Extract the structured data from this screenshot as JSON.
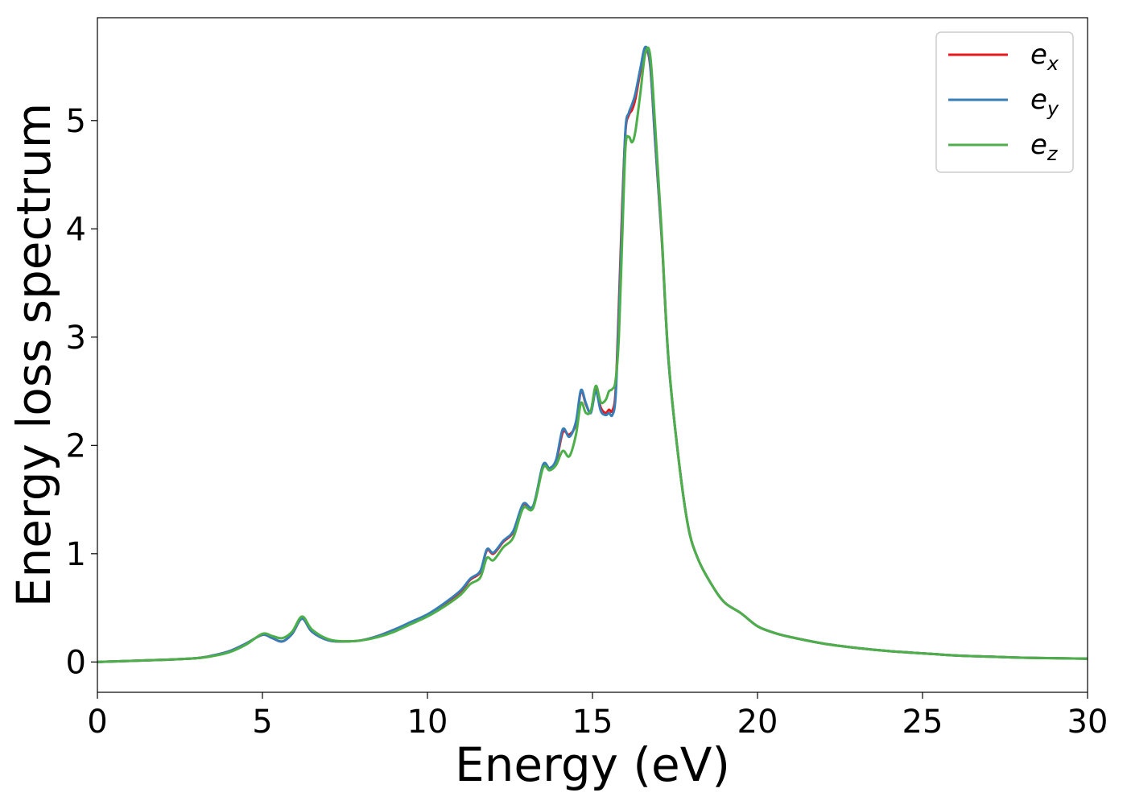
{
  "chart_data": {
    "type": "line",
    "title": "",
    "xlabel": "Energy (eV)",
    "ylabel": "Energy loss spectrum",
    "xlim": [
      0,
      30
    ],
    "ylim": [
      -0.28,
      5.95
    ],
    "xticks": [
      0,
      5,
      10,
      15,
      20,
      25,
      30
    ],
    "yticks": [
      0,
      1,
      2,
      3,
      4,
      5
    ],
    "grid": false,
    "legend_position": "top-right",
    "series": [
      {
        "name": "e",
        "subscript": "x",
        "color": "#e41a1c",
        "x": [
          0,
          1,
          2,
          3,
          3.5,
          4,
          4.5,
          5,
          5.3,
          5.6,
          5.9,
          6.2,
          6.5,
          7,
          7.5,
          8,
          8.5,
          9,
          9.5,
          10,
          10.5,
          11,
          11.3,
          11.6,
          11.8,
          12,
          12.3,
          12.6,
          12.9,
          13.2,
          13.5,
          13.7,
          13.9,
          14.1,
          14.3,
          14.5,
          14.65,
          14.8,
          14.95,
          15.1,
          15.25,
          15.4,
          15.5,
          15.6,
          15.7,
          15.8,
          15.9,
          16,
          16.1,
          16.2,
          16.3,
          16.45,
          16.6,
          16.75,
          16.9,
          17.1,
          17.3,
          17.6,
          17.9,
          18.2,
          18.6,
          19,
          19.5,
          20,
          20.5,
          21,
          22,
          23,
          24,
          25,
          26,
          27,
          28,
          29,
          30
        ],
        "values": [
          0,
          0.01,
          0.02,
          0.035,
          0.06,
          0.1,
          0.17,
          0.25,
          0.22,
          0.19,
          0.26,
          0.4,
          0.28,
          0.2,
          0.19,
          0.2,
          0.24,
          0.3,
          0.36,
          0.43,
          0.53,
          0.65,
          0.76,
          0.83,
          1.03,
          1.0,
          1.11,
          1.2,
          1.45,
          1.43,
          1.8,
          1.78,
          1.85,
          2.12,
          2.1,
          2.2,
          2.5,
          2.38,
          2.31,
          2.52,
          2.35,
          2.3,
          2.33,
          2.32,
          2.5,
          3.3,
          4.2,
          4.9,
          5.05,
          5.1,
          5.2,
          5.45,
          5.66,
          5.5,
          4.8,
          3.9,
          2.8,
          1.9,
          1.25,
          0.95,
          0.72,
          0.55,
          0.45,
          0.33,
          0.27,
          0.23,
          0.17,
          0.13,
          0.1,
          0.08,
          0.06,
          0.05,
          0.04,
          0.035,
          0.03
        ]
      },
      {
        "name": "e",
        "subscript": "y",
        "color": "#377eb8",
        "x": [
          0,
          1,
          2,
          3,
          3.5,
          4,
          4.5,
          5,
          5.3,
          5.6,
          5.9,
          6.2,
          6.5,
          7,
          7.5,
          8,
          8.5,
          9,
          9.5,
          10,
          10.5,
          11,
          11.3,
          11.6,
          11.8,
          12,
          12.3,
          12.6,
          12.9,
          13.2,
          13.5,
          13.7,
          13.9,
          14.1,
          14.3,
          14.5,
          14.65,
          14.8,
          14.95,
          15.1,
          15.25,
          15.4,
          15.5,
          15.6,
          15.7,
          15.8,
          15.9,
          16,
          16.1,
          16.2,
          16.3,
          16.45,
          16.6,
          16.75,
          16.9,
          17.1,
          17.3,
          17.6,
          17.9,
          18.2,
          18.6,
          19,
          19.5,
          20,
          20.5,
          21,
          22,
          23,
          24,
          25,
          26,
          27,
          28,
          29,
          30
        ],
        "values": [
          0,
          0.01,
          0.02,
          0.035,
          0.06,
          0.1,
          0.17,
          0.25,
          0.22,
          0.19,
          0.26,
          0.4,
          0.28,
          0.2,
          0.19,
          0.2,
          0.24,
          0.3,
          0.37,
          0.44,
          0.54,
          0.66,
          0.77,
          0.84,
          1.04,
          1.01,
          1.12,
          1.21,
          1.46,
          1.44,
          1.82,
          1.79,
          1.87,
          2.15,
          2.08,
          2.22,
          2.51,
          2.39,
          2.3,
          2.5,
          2.32,
          2.28,
          2.3,
          2.28,
          2.45,
          3.2,
          4.1,
          4.92,
          5.07,
          5.15,
          5.25,
          5.48,
          5.68,
          5.52,
          4.82,
          3.92,
          2.8,
          1.9,
          1.25,
          0.95,
          0.72,
          0.55,
          0.45,
          0.33,
          0.27,
          0.23,
          0.17,
          0.13,
          0.1,
          0.08,
          0.06,
          0.05,
          0.04,
          0.035,
          0.03
        ]
      },
      {
        "name": "e",
        "subscript": "z",
        "color": "#4daf4a",
        "x": [
          0,
          1,
          2,
          3,
          3.5,
          4,
          4.5,
          5,
          5.3,
          5.6,
          5.9,
          6.2,
          6.5,
          7,
          7.5,
          8,
          8.5,
          9,
          9.5,
          10,
          10.5,
          11,
          11.3,
          11.6,
          11.8,
          12,
          12.3,
          12.6,
          12.9,
          13.2,
          13.5,
          13.7,
          13.9,
          14.1,
          14.3,
          14.5,
          14.65,
          14.8,
          14.95,
          15.1,
          15.25,
          15.4,
          15.5,
          15.6,
          15.7,
          15.8,
          15.9,
          16,
          16.1,
          16.2,
          16.3,
          16.45,
          16.6,
          16.75,
          16.9,
          17.1,
          17.3,
          17.6,
          17.9,
          18.2,
          18.6,
          19,
          19.5,
          20,
          20.5,
          21,
          22,
          23,
          24,
          25,
          26,
          27,
          28,
          29,
          30
        ],
        "values": [
          0,
          0.01,
          0.02,
          0.035,
          0.055,
          0.09,
          0.16,
          0.26,
          0.24,
          0.22,
          0.28,
          0.42,
          0.3,
          0.21,
          0.19,
          0.2,
          0.23,
          0.28,
          0.35,
          0.42,
          0.51,
          0.62,
          0.72,
          0.78,
          0.96,
          0.94,
          1.06,
          1.15,
          1.42,
          1.42,
          1.79,
          1.77,
          1.82,
          1.95,
          1.9,
          2.1,
          2.39,
          2.3,
          2.32,
          2.55,
          2.4,
          2.42,
          2.5,
          2.52,
          2.6,
          3.0,
          3.9,
          4.75,
          4.85,
          4.8,
          4.9,
          5.25,
          5.62,
          5.6,
          4.95,
          3.95,
          2.82,
          1.9,
          1.25,
          0.95,
          0.72,
          0.55,
          0.45,
          0.33,
          0.27,
          0.23,
          0.17,
          0.13,
          0.1,
          0.08,
          0.06,
          0.05,
          0.04,
          0.035,
          0.03
        ]
      }
    ]
  }
}
